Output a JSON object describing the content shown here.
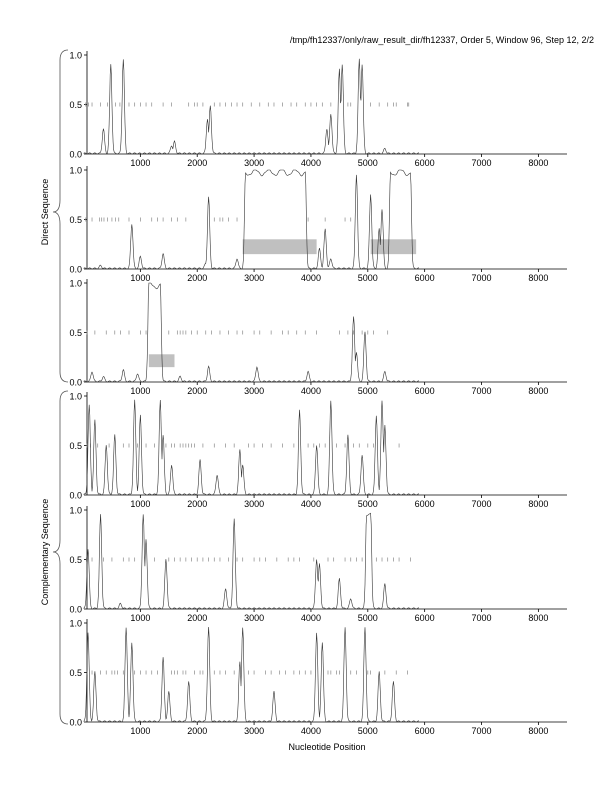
{
  "chart_data": {
    "type": "line",
    "title": "/tmp/fh12337/only/raw_result_dir/fh12337, Order 5, Window 96, Step 12, 2/2",
    "xlabel": "Nucleotide Position",
    "group_labels": [
      "Direct Sequence",
      "Complementary Sequence"
    ],
    "xlim": [
      0,
      8500
    ],
    "ylim": [
      0,
      1
    ],
    "x_ticks": [
      1000,
      2000,
      3000,
      4000,
      5000,
      6000,
      7000,
      8000
    ],
    "y_ticks": [
      "0.0",
      "0.5",
      "1.0"
    ],
    "colors": {
      "line": "#333333",
      "stop": "#888888",
      "region": "#c0c0c0"
    },
    "panels": [
      {
        "group": "Direct Sequence",
        "peaks": [
          [
            350,
            0.25
          ],
          [
            480,
            0.9
          ],
          [
            700,
            0.95
          ],
          [
            1550,
            0.08
          ],
          [
            1600,
            0.12
          ],
          [
            2180,
            0.35
          ],
          [
            2230,
            0.48
          ],
          [
            4280,
            0.25
          ],
          [
            4350,
            0.4
          ],
          [
            4500,
            0.85
          ],
          [
            4550,
            0.9
          ],
          [
            4850,
            0.95
          ],
          [
            4900,
            0.9
          ],
          [
            5300,
            0.05
          ]
        ],
        "plateaus": [],
        "regions": [],
        "stops": [
          40,
          90,
          150,
          300,
          420,
          560,
          640,
          800,
          900,
          1000,
          1100,
          1200,
          1400,
          1550,
          1850,
          1950,
          2000,
          2100,
          2300,
          2400,
          2500,
          2600,
          2700,
          2800,
          2950,
          3100,
          3250,
          3350,
          3500,
          3650,
          3750,
          3900,
          4000,
          4100,
          4200,
          4350,
          4650,
          4700,
          5050,
          5200,
          5350,
          5450,
          5500,
          5700,
          5720
        ]
      },
      {
        "group": "Direct Sequence",
        "peaks": [
          [
            300,
            0.03
          ],
          [
            850,
            0.45
          ],
          [
            1000,
            0.12
          ],
          [
            1400,
            0.15
          ],
          [
            2150,
            0.05
          ],
          [
            2200,
            0.72
          ],
          [
            2700,
            0.1
          ],
          [
            4150,
            0.2
          ],
          [
            4250,
            0.4
          ],
          [
            4350,
            0.1
          ],
          [
            4800,
            0.95
          ],
          [
            5050,
            0.75
          ],
          [
            5200,
            0.4
          ],
          [
            5250,
            0.6
          ]
        ],
        "plateaus": [
          [
            2850,
            3900,
            1.0
          ],
          [
            5400,
            5750,
            1.0
          ]
        ],
        "regions": [
          [
            2800,
            4100,
            0.15,
            0.3
          ],
          [
            5050,
            5850,
            0.15,
            0.3
          ]
        ],
        "stops": [
          40,
          150,
          280,
          320,
          360,
          420,
          500,
          560,
          620,
          800,
          1000,
          1200,
          1300,
          1400,
          1550,
          1650,
          1800,
          2300,
          2400,
          2450,
          2550,
          2700,
          3950,
          4250,
          4600,
          4700
        ]
      },
      {
        "group": "Direct Sequence",
        "peaks": [
          [
            150,
            0.1
          ],
          [
            350,
            0.05
          ],
          [
            700,
            0.12
          ],
          [
            950,
            0.08
          ],
          [
            1700,
            0.05
          ],
          [
            2200,
            0.15
          ],
          [
            3050,
            0.15
          ],
          [
            3950,
            0.1
          ],
          [
            4750,
            0.65
          ],
          [
            4800,
            0.3
          ],
          [
            4950,
            0.5
          ],
          [
            5300,
            0.1
          ]
        ],
        "plateaus": [
          [
            1150,
            1350,
            1.0
          ]
        ],
        "regions": [
          [
            1150,
            1600,
            0.15,
            0.28
          ]
        ],
        "stops": [
          60,
          200,
          400,
          550,
          650,
          800,
          1000,
          1100,
          1500,
          1650,
          1700,
          1750,
          1800,
          1900,
          2000,
          2150,
          2250,
          2400,
          2550,
          2700,
          2800,
          3000,
          3100,
          3300,
          3500,
          3600,
          3750,
          3900,
          4100,
          4500,
          4650,
          4750,
          4900,
          5000,
          5100,
          5350
        ]
      },
      {
        "group": "Complementary Sequence",
        "peaks": [
          [
            100,
            0.9
          ],
          [
            200,
            0.75
          ],
          [
            400,
            0.5
          ],
          [
            550,
            0.6
          ],
          [
            900,
            0.95
          ],
          [
            1000,
            0.8
          ],
          [
            1350,
            0.95
          ],
          [
            1400,
            0.6
          ],
          [
            1550,
            0.3
          ],
          [
            2050,
            0.35
          ],
          [
            2350,
            0.2
          ],
          [
            2750,
            0.45
          ],
          [
            2800,
            0.3
          ],
          [
            3800,
            0.85
          ],
          [
            4100,
            0.5
          ],
          [
            4350,
            0.95
          ],
          [
            4650,
            0.6
          ],
          [
            4900,
            0.4
          ],
          [
            5150,
            0.8
          ],
          [
            5250,
            0.95
          ],
          [
            5300,
            0.7
          ]
        ],
        "plateaus": [],
        "regions": [],
        "stops": [
          60,
          120,
          250,
          450,
          700,
          800,
          950,
          1100,
          1250,
          1450,
          1550,
          1600,
          1700,
          1750,
          1800,
          1850,
          1900,
          1950,
          2100,
          2300,
          2500,
          2650,
          2900,
          3000,
          3150,
          3300,
          3500,
          3700,
          3950,
          4050,
          4150,
          4250,
          4450,
          4600,
          4750,
          4850,
          5000,
          5100,
          5550
        ]
      },
      {
        "group": "Complementary Sequence",
        "peaks": [
          [
            80,
            0.6
          ],
          [
            300,
            0.95
          ],
          [
            650,
            0.05
          ],
          [
            1050,
            0.95
          ],
          [
            1100,
            0.7
          ],
          [
            1450,
            0.5
          ],
          [
            2500,
            0.2
          ],
          [
            2650,
            0.9
          ],
          [
            4100,
            0.5
          ],
          [
            4150,
            0.45
          ],
          [
            4500,
            0.3
          ],
          [
            4700,
            0.1
          ],
          [
            5300,
            0.25
          ]
        ],
        "plateaus": [
          [
            4980,
            5050,
            1.0
          ]
        ],
        "regions": [],
        "stops": [
          50,
          150,
          350,
          500,
          700,
          800,
          900,
          1250,
          1500,
          1600,
          1700,
          1800,
          1900,
          2000,
          2100,
          2200,
          2300,
          2400,
          2550,
          2700,
          2800,
          3000,
          3100,
          3200,
          3400,
          3600,
          3700,
          3800,
          4050,
          4300,
          4400,
          4600,
          4700,
          4800,
          4900,
          5150,
          5250,
          5350,
          5450,
          5550,
          5750
        ]
      },
      {
        "group": "Complementary Sequence",
        "peaks": [
          [
            80,
            0.9
          ],
          [
            200,
            0.5
          ],
          [
            750,
            0.95
          ],
          [
            850,
            0.8
          ],
          [
            1400,
            0.65
          ],
          [
            1500,
            0.3
          ],
          [
            1850,
            0.4
          ],
          [
            2200,
            0.95
          ],
          [
            2750,
            0.6
          ],
          [
            2800,
            0.95
          ],
          [
            3350,
            0.3
          ],
          [
            4100,
            0.9
          ],
          [
            4200,
            0.8
          ],
          [
            4600,
            0.95
          ],
          [
            4950,
            0.95
          ],
          [
            5200,
            0.5
          ],
          [
            5450,
            0.4
          ]
        ],
        "plateaus": [],
        "regions": [],
        "stops": [
          60,
          150,
          300,
          400,
          500,
          550,
          600,
          700,
          900,
          1000,
          1100,
          1200,
          1300,
          1550,
          1600,
          1650,
          1750,
          1800,
          1950,
          2050,
          2100,
          2300,
          2400,
          2500,
          2650,
          2900,
          3000,
          3200,
          3300,
          3450,
          3550,
          3700,
          3800,
          3900,
          4000,
          4300,
          4350,
          4450,
          4500,
          4700,
          4800,
          5000,
          5050,
          5300,
          5500,
          5700
        ]
      }
    ]
  }
}
